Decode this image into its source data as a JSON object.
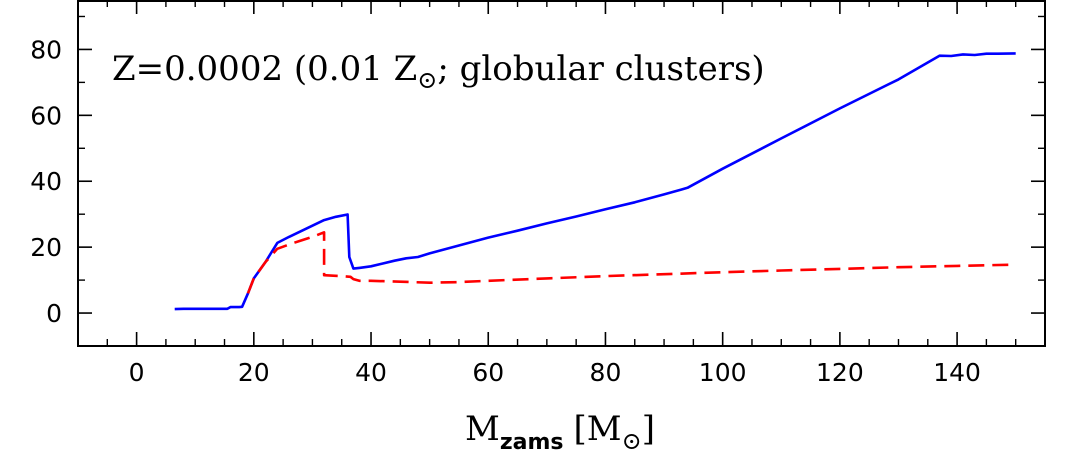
{
  "chart_data": {
    "type": "line",
    "title": "",
    "annotation": {
      "prefix": "Z=0.0002 (0.01 Z",
      "sub": "⊙",
      "suffix": "; globular clusters)"
    },
    "xlabel": {
      "main": "M",
      "sub": "zams",
      "bracket_open": "[M",
      "bracket_sub": "⊙",
      "bracket_close": "]"
    },
    "ylabel": "",
    "xlim": [
      -10,
      155
    ],
    "ylim": [
      -10,
      95
    ],
    "xticks": [
      0,
      20,
      40,
      60,
      80,
      100,
      120,
      140
    ],
    "yticks": [
      0,
      20,
      40,
      60,
      80
    ],
    "xminor_step": 5,
    "yminor_step": 10,
    "grid": false,
    "series": [
      {
        "name": "solid",
        "color": "#0000ff",
        "style": "solid",
        "points": [
          [
            6.5,
            1.2
          ],
          [
            8,
            1.3
          ],
          [
            10,
            1.3
          ],
          [
            12,
            1.3
          ],
          [
            14,
            1.3
          ],
          [
            15.5,
            1.3
          ],
          [
            16,
            1.8
          ],
          [
            17.5,
            1.8
          ],
          [
            18,
            1.9
          ],
          [
            19,
            6
          ],
          [
            20,
            10.5
          ],
          [
            22,
            15.5
          ],
          [
            24,
            21.3
          ],
          [
            26,
            23.1
          ],
          [
            28,
            24.8
          ],
          [
            30,
            26.5
          ],
          [
            32,
            28.2
          ],
          [
            34,
            29.2
          ],
          [
            36,
            29.9
          ],
          [
            36.3,
            17
          ],
          [
            37,
            13.5
          ],
          [
            38,
            13.7
          ],
          [
            40,
            14.2
          ],
          [
            44,
            15.9
          ],
          [
            46,
            16.6
          ],
          [
            48,
            17.0
          ],
          [
            50,
            18.1
          ],
          [
            55,
            20.5
          ],
          [
            60,
            22.9
          ],
          [
            65,
            25.0
          ],
          [
            70,
            27.2
          ],
          [
            75,
            29.3
          ],
          [
            80,
            31.5
          ],
          [
            85,
            33.6
          ],
          [
            90,
            36.0
          ],
          [
            93,
            37.5
          ],
          [
            94,
            38.0
          ],
          [
            100,
            43.8
          ],
          [
            110,
            53.0
          ],
          [
            120,
            62.1
          ],
          [
            130,
            70.9
          ],
          [
            137,
            78.1
          ],
          [
            139,
            78.0
          ],
          [
            141,
            78.5
          ],
          [
            143,
            78.3
          ],
          [
            145,
            78.7
          ],
          [
            147,
            78.7
          ],
          [
            150,
            78.8
          ]
        ]
      },
      {
        "name": "dashed",
        "color": "#ff0000",
        "style": "dashed",
        "points": [
          [
            19,
            6
          ],
          [
            20,
            10.5
          ],
          [
            22,
            15.5
          ],
          [
            24,
            19.5
          ],
          [
            26,
            20.8
          ],
          [
            28,
            22.0
          ],
          [
            30,
            23.1
          ],
          [
            32,
            24.5
          ],
          [
            32,
            11.5
          ],
          [
            35,
            11.2
          ],
          [
            36.5,
            11.0
          ],
          [
            37,
            10.3
          ],
          [
            38,
            9.8
          ],
          [
            40,
            9.8
          ],
          [
            45,
            9.5
          ],
          [
            50,
            9.2
          ],
          [
            55,
            9.4
          ],
          [
            60,
            9.8
          ],
          [
            70,
            10.5
          ],
          [
            80,
            11.2
          ],
          [
            90,
            11.8
          ],
          [
            100,
            12.4
          ],
          [
            110,
            12.9
          ],
          [
            120,
            13.4
          ],
          [
            130,
            13.9
          ],
          [
            140,
            14.3
          ],
          [
            150,
            14.7
          ]
        ]
      }
    ]
  }
}
